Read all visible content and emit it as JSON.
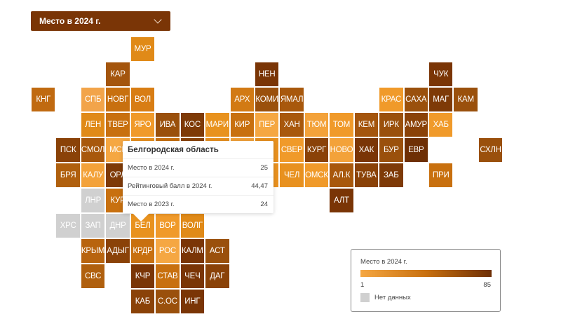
{
  "dropdown": {
    "selected": "Место в 2024 г."
  },
  "tooltip": {
    "title": "Белгородская область",
    "rows": [
      {
        "label": "Место в 2024 г.",
        "value": "25"
      },
      {
        "label": "Рейтинговый балл в 2024 г.",
        "value": "44,47"
      },
      {
        "label": "Место в 2023 г.",
        "value": "24"
      }
    ]
  },
  "legend": {
    "title": "Место в 2024 г.",
    "min": "1",
    "max": "85",
    "no_data": "Нет данных",
    "color_low": "#f5a742",
    "color_high": "#6e2f05",
    "color_no_data": "#d0d0d0"
  },
  "chart_data": {
    "type": "heatmap",
    "title": "Место в 2024 г.",
    "scale": [
      1,
      85
    ],
    "rows": [
      [
        null,
        null,
        null,
        null,
        {
          "label": "МУР",
          "color": "#e08a18"
        },
        null,
        null,
        null,
        null,
        null,
        null,
        null,
        null,
        null,
        null,
        null,
        null,
        null,
        null
      ],
      [
        null,
        null,
        null,
        {
          "label": "КАР",
          "color": "#a4550d"
        },
        null,
        null,
        null,
        null,
        null,
        {
          "label": "НЕН",
          "color": "#7a3506"
        },
        null,
        null,
        null,
        null,
        null,
        null,
        {
          "label": "ЧУК",
          "color": "#7a3506"
        },
        null,
        null
      ],
      [
        {
          "label": "КНГ",
          "color": "#c06a10"
        },
        null,
        {
          "label": "СПБ",
          "color": "#f2a44a"
        },
        {
          "label": "НОВГ",
          "color": "#c8700f"
        },
        {
          "label": "ВОЛ",
          "color": "#d87d14"
        },
        null,
        null,
        null,
        {
          "label": "АРХ",
          "color": "#d27a14"
        },
        {
          "label": "КОМИ",
          "color": "#9a500c"
        },
        {
          "label": "ЯМАЛ",
          "color": "#a8580c"
        },
        null,
        null,
        null,
        {
          "label": "КРАС",
          "color": "#f09a2a"
        },
        {
          "label": "САХА",
          "color": "#9a500c"
        },
        {
          "label": "МАГ",
          "color": "#7e3a07"
        },
        {
          "label": "КАМ",
          "color": "#9a500c"
        },
        null
      ],
      [
        null,
        null,
        {
          "label": "ЛЕН",
          "color": "#e08a18"
        },
        {
          "label": "ТВЕР",
          "color": "#c8700f"
        },
        {
          "label": "ЯРО",
          "color": "#f09a2a"
        },
        {
          "label": "ИВА",
          "color": "#9a500c"
        },
        {
          "label": "КОС",
          "color": "#7e3a07"
        },
        {
          "label": "МАРИ",
          "color": "#e8921e"
        },
        {
          "label": "КИР",
          "color": "#c8700f"
        },
        {
          "label": "ПЕР",
          "color": "#f5a742"
        },
        {
          "label": "ХАН",
          "color": "#a8580c"
        },
        {
          "label": "ТЮМ",
          "color": "#f3a23a"
        },
        {
          "label": "ТОМ",
          "color": "#f09a2a"
        },
        {
          "label": "КЕМ",
          "color": "#a4550d"
        },
        {
          "label": "ИРК",
          "color": "#9a500c"
        },
        {
          "label": "АМУР",
          "color": "#8a4208"
        },
        {
          "label": "ХАБ",
          "color": "#f09a2a"
        },
        null,
        null
      ],
      [
        null,
        {
          "label": "ПСК",
          "color": "#8a4208"
        },
        {
          "label": "СМОЛ",
          "color": "#a8580c"
        },
        {
          "label": "МСК",
          "color": "#f5a742"
        },
        {
          "color": "#e8911f"
        },
        {
          "color": "#c8700f"
        },
        {
          "color": "#8a4208"
        },
        {
          "color": "#e8911f"
        },
        {
          "color": "#f3a23a"
        },
        {
          "color": "#e8911f"
        },
        {
          "label": "СВЕР",
          "color": "#f09a2a"
        },
        {
          "label": "КУРГ",
          "color": "#8a4208"
        },
        {
          "label": "НОВО",
          "color": "#f3a23a"
        },
        {
          "label": "ХАК",
          "color": "#7a3506"
        },
        {
          "label": "БУР",
          "color": "#9a500c"
        },
        {
          "label": "ЕВР",
          "color": "#6e2f05"
        },
        null,
        null,
        {
          "label": "СХЛН",
          "color": "#9a500c"
        }
      ],
      [
        null,
        {
          "label": "БРЯ",
          "color": "#b0600e"
        },
        {
          "label": "КАЛУ",
          "color": "#f3a23a"
        },
        {
          "label": "ОРЛ",
          "color": "#7e3a07"
        },
        {
          "color": "#e8911f"
        },
        {
          "color": "#c8700f"
        },
        {
          "color": "#e8911f"
        },
        {
          "color": "#f09a2a"
        },
        {
          "color": "#c8700f"
        },
        {
          "color": "#e8911f"
        },
        {
          "label": "ЧЕЛ",
          "color": "#e8911f"
        },
        {
          "label": "ОМСК",
          "color": "#f09a2a"
        },
        {
          "label": "АЛ.К",
          "color": "#a8580c"
        },
        {
          "label": "ТУВА",
          "color": "#8a4208"
        },
        {
          "label": "ЗАБ",
          "color": "#7e3a07"
        },
        null,
        {
          "label": "ПРИ",
          "color": "#c8700f"
        },
        null,
        null
      ],
      [
        null,
        null,
        {
          "label": "ЛНР",
          "color": "#d0d0d0"
        },
        {
          "label": "КУР",
          "color": "#c8700f"
        },
        {
          "color": "#e8911f"
        },
        {
          "color": "#f09a2a"
        },
        {
          "color": "#c8700f"
        },
        {
          "color": "#e8911f"
        },
        {
          "color": "#f09a2a"
        },
        null,
        null,
        null,
        {
          "label": "АЛТ",
          "color": "#7a3506"
        },
        null,
        null,
        null,
        null,
        null,
        null
      ],
      [
        null,
        {
          "label": "ХРС",
          "color": "#d0d0d0"
        },
        {
          "label": "ЗАП",
          "color": "#d0d0d0"
        },
        {
          "label": "ДНР",
          "color": "#d0d0d0"
        },
        {
          "label": "БЕЛ",
          "color": "#e8921e"
        },
        {
          "label": "ВОР",
          "color": "#f09a2a"
        },
        {
          "label": "ВОЛГ",
          "color": "#e08a18"
        },
        null,
        null,
        null,
        null,
        null,
        null,
        null,
        null,
        null,
        null,
        null,
        null
      ],
      [
        null,
        null,
        {
          "label": "КРЫМ",
          "color": "#b8640e"
        },
        {
          "label": "АДЫГ",
          "color": "#8a4208"
        },
        {
          "label": "КРДР",
          "color": "#c8700f"
        },
        {
          "label": "РОС",
          "color": "#f5a742"
        },
        {
          "label": "КАЛМ",
          "color": "#7a3506"
        },
        {
          "label": "АСТ",
          "color": "#9a500c"
        },
        null,
        null,
        null,
        null,
        null,
        null,
        null,
        null,
        null,
        null,
        null
      ],
      [
        null,
        null,
        {
          "label": "СВС",
          "color": "#b0600e"
        },
        null,
        {
          "label": "КЧР",
          "color": "#7a3506"
        },
        {
          "label": "СТАВ",
          "color": "#c8700f"
        },
        {
          "label": "ЧЕЧ",
          "color": "#7a3506"
        },
        {
          "label": "ДАГ",
          "color": "#8a4208"
        },
        null,
        null,
        null,
        null,
        null,
        null,
        null,
        null,
        null,
        null,
        null
      ],
      [
        null,
        null,
        null,
        null,
        {
          "label": "КАБ",
          "color": "#8a4208"
        },
        {
          "label": "С.ОС",
          "color": "#9a500c"
        },
        {
          "label": "ИНГ",
          "color": "#7a3506"
        },
        null,
        null,
        null,
        null,
        null,
        null,
        null,
        null,
        null,
        null,
        null,
        null
      ]
    ]
  }
}
